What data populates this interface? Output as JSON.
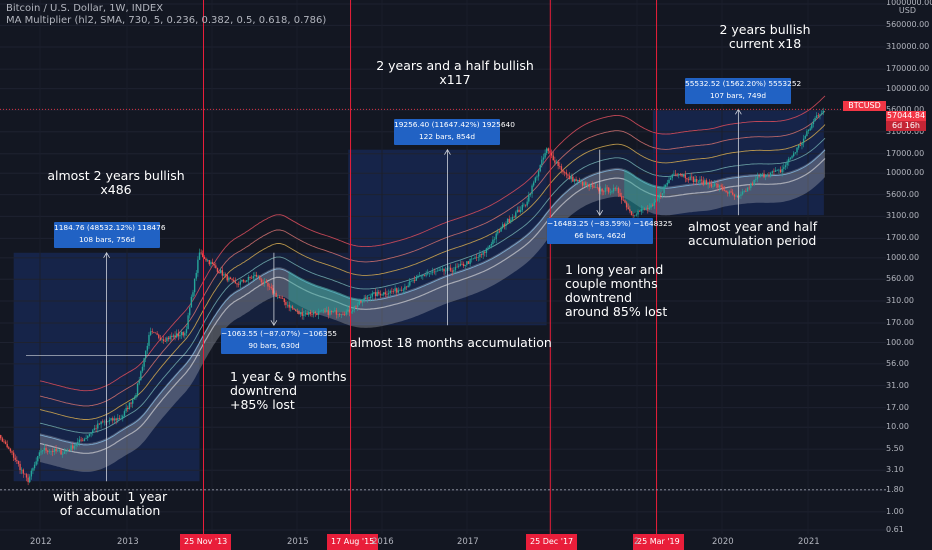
{
  "header": {
    "symbol_line": "Bitcoin / U.S. Dollar, 1W, INDEX",
    "indicator_line": "MA Multiplier (hl2, SMA, 730, 5, 0.236, 0.382, 0.5, 0.618, 0.786)"
  },
  "price_label": {
    "symbol": "BTCUSD",
    "value": "57044.84",
    "countdown": "6d 16h"
  },
  "colors": {
    "background": "#131722",
    "vline": "#e91e3a",
    "measure_box": "#2162c4",
    "zone": "#2a3a5e"
  },
  "chart_data": {
    "type": "line",
    "y_scale": "log",
    "ylim": [
      0.61,
      1000000
    ],
    "y_axis_unit": "USD",
    "y_ticks": [
      "1000000.00",
      "560000.00",
      "310000.00",
      "170000.00",
      "100000.00",
      "56000.00",
      "31000.00",
      "17000.00",
      "10000.00",
      "5600.00",
      "3100.00",
      "1700.00",
      "1000.00",
      "560.00",
      "310.00",
      "170.00",
      "100.00",
      "56.00",
      "31.00",
      "17.00",
      "10.00",
      "5.50",
      "3.10",
      "1.80",
      "1.00",
      "0.61"
    ],
    "x_ticks": [
      "2012",
      "2013",
      "2015",
      "2016",
      "2017",
      "2020",
      "2021"
    ],
    "x_ticks_partial": [
      "2"
    ],
    "vertical_markers": [
      "25 Nov '13",
      "17 Aug '15",
      "25 Dec '17",
      "25 Mar '19"
    ],
    "series": [
      {
        "x": [
          "2011-06",
          "2011-09",
          "2011-11",
          "2012-01",
          "2012-04",
          "2012-07",
          "2012-09",
          "2012-12",
          "2013-02",
          "2013-04",
          "2013-06",
          "2013-09",
          "2013-11",
          "2014-01",
          "2014-04",
          "2014-07",
          "2014-10",
          "2015-01",
          "2015-04",
          "2015-08",
          "2015-11",
          "2016-03",
          "2016-07",
          "2016-11",
          "2017-03",
          "2017-06",
          "2017-09",
          "2017-12",
          "2018-03",
          "2018-07",
          "2018-10",
          "2018-12",
          "2019-03",
          "2019-06",
          "2019-09",
          "2019-12",
          "2020-03",
          "2020-06",
          "2020-09",
          "2020-12",
          "2021-02",
          "2021-03"
        ],
        "y": [
          10,
          4.5,
          2.3,
          5.5,
          5,
          7.5,
          11,
          13,
          25,
          130,
          110,
          130,
          1150,
          800,
          480,
          620,
          350,
          220,
          225,
          230,
          360,
          415,
          650,
          735,
          1100,
          2500,
          4300,
          19000,
          9000,
          6400,
          6300,
          3300,
          4000,
          10500,
          8200,
          7200,
          5000,
          9300,
          10700,
          24000,
          48000,
          57000
        ]
      }
    ],
    "measurements": [
      {
        "value": "1184.76 (48532.12%) 118476",
        "bars": "108 bars, 756d",
        "from": [
          "2011-11",
          2.3
        ],
        "to": [
          "2013-11",
          1150
        ]
      },
      {
        "value": "−1063.55 (−87.07%) −106355",
        "bars": "90 bars, 630d",
        "from": [
          "2013-11",
          1150
        ],
        "to": [
          "2015-08",
          160
        ]
      },
      {
        "value": "19256.40 (11647.42%) 1925640",
        "bars": "122 bars, 854d",
        "from": [
          "2015-08",
          160
        ],
        "to": [
          "2017-12",
          19000
        ]
      },
      {
        "value": "−16483.25 (−83.59%) −1648325",
        "bars": "66 bars, 462d",
        "from": [
          "2017-12",
          19000
        ],
        "to": [
          "2019-03",
          3200
        ]
      },
      {
        "value": "55532.52 (1562.20%) 5553252",
        "bars": "107 bars, 749d",
        "from": [
          "2019-03",
          3200
        ],
        "to": [
          "2021-03",
          57000
        ]
      }
    ]
  },
  "annotations": {
    "bull1": "almost 2 years bullish\nx486",
    "accum1": "with about  1 year\nof accumulation",
    "down1": "1 year & 9 months\ndowntrend\n+85% lost",
    "accum2": "almost 18 months accumulation",
    "bull2": "2 years and a half bullish\nx117",
    "down2": "1 long year and\ncouple months\ndowntrend\naround 85% lost",
    "accum3": "almost year and half\naccumulation period",
    "bull3": "2 years bullish\ncurrent x18"
  }
}
